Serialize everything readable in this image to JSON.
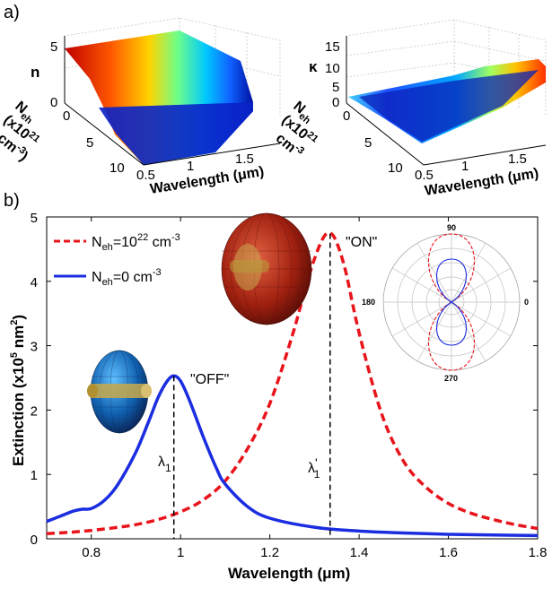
{
  "panels": {
    "a": "a)",
    "b": "b)"
  },
  "surface_left": {
    "zlabel": "n",
    "z_ticks": [
      "5",
      "0"
    ],
    "n_label": "N",
    "n_sub": "eh",
    "n_unit_1": "(x10",
    "n_unit_exp": "21",
    "n_unit_2": "cm",
    "n_unit_exp2": "-3",
    "n_unit_3": ")",
    "n_ticks": [
      "0",
      "5",
      "10"
    ],
    "xlabel": "Wavelength (μm)",
    "x_ticks": [
      "0.5",
      "1",
      "1.5"
    ]
  },
  "surface_right": {
    "zlabel": "κ",
    "z_ticks": [
      "15",
      "10",
      "5",
      "0"
    ],
    "n_label": "N",
    "n_sub": "eh",
    "n_unit_1": "(x10",
    "n_unit_exp": "21",
    "n_unit_2": "cm",
    "n_unit_exp2": "-3",
    "n_ticks": [
      "0",
      "5",
      "10"
    ],
    "xlabel": "Wavelength (μm)",
    "x_ticks": [
      "0.5",
      "1",
      "1.5"
    ]
  },
  "legend": {
    "entry1_main": "N",
    "entry1_sub": "eh",
    "entry1_rest": "=10",
    "entry1_exp": "22",
    "entry1_unit": " cm",
    "entry1_unit_exp": "-3",
    "entry2_main": "N",
    "entry2_sub": "eh",
    "entry2_rest": "=0 cm",
    "entry2_unit_exp": "-3"
  },
  "annotations": {
    "on": "\"ON\"",
    "off": "\"OFF\"",
    "lambda": "λ",
    "lambda_sub": "1",
    "lambda_prime": "'"
  },
  "polar": {
    "labels": [
      "90",
      "180",
      "0",
      "270"
    ]
  },
  "colors": {
    "on_series": "#e8141b",
    "off_series": "#1b2de0",
    "polar_grid": "#bfbfbf"
  },
  "chart_data": {
    "type": "line",
    "title": "",
    "xlabel": "Wavelength (μm)",
    "ylabel_parts": {
      "a": "Extinction (x10",
      "exp": "5",
      "b": " nm",
      "exp2": "2",
      "c": ")"
    },
    "xlim": [
      0.7,
      1.8
    ],
    "ylim": [
      0,
      5
    ],
    "x_ticks": [
      0.8,
      1,
      1.2,
      1.4,
      1.6,
      1.8
    ],
    "y_ticks": [
      0,
      1,
      2,
      3,
      4,
      5
    ],
    "x_tick_labels": [
      "0.8",
      "1",
      "1.2",
      "1.4",
      "1.6",
      "1.8"
    ],
    "y_tick_labels": [
      "0",
      "1",
      "2",
      "3",
      "4",
      "5"
    ],
    "legend_position": "top-left",
    "series": [
      {
        "name": "Neh=10^22 cm^-3",
        "style": "dashed",
        "x": [
          0.7,
          0.75,
          0.8,
          0.85,
          0.9,
          0.95,
          1.0,
          1.05,
          1.1,
          1.15,
          1.2,
          1.25,
          1.28,
          1.3,
          1.32,
          1.335,
          1.35,
          1.37,
          1.4,
          1.45,
          1.5,
          1.55,
          1.6,
          1.65,
          1.7,
          1.75,
          1.8
        ],
        "y": [
          0.08,
          0.1,
          0.13,
          0.17,
          0.22,
          0.3,
          0.42,
          0.6,
          0.9,
          1.4,
          2.1,
          3.15,
          3.9,
          4.35,
          4.68,
          4.75,
          4.6,
          4.15,
          3.2,
          1.95,
          1.2,
          0.8,
          0.55,
          0.4,
          0.3,
          0.22,
          0.16
        ]
      },
      {
        "name": "Neh=0 cm^-3",
        "style": "solid",
        "x": [
          0.7,
          0.73,
          0.76,
          0.78,
          0.8,
          0.83,
          0.86,
          0.9,
          0.93,
          0.95,
          0.97,
          0.985,
          1.0,
          1.02,
          1.05,
          1.08,
          1.1,
          1.15,
          1.2,
          1.3,
          1.4,
          1.5,
          1.6,
          1.7,
          1.8
        ],
        "y": [
          0.27,
          0.35,
          0.43,
          0.46,
          0.47,
          0.6,
          0.85,
          1.35,
          1.85,
          2.2,
          2.45,
          2.53,
          2.45,
          2.15,
          1.6,
          1.1,
          0.85,
          0.5,
          0.32,
          0.18,
          0.12,
          0.09,
          0.07,
          0.06,
          0.05
        ]
      }
    ],
    "peak_markers": [
      1.335,
      0.985
    ]
  }
}
